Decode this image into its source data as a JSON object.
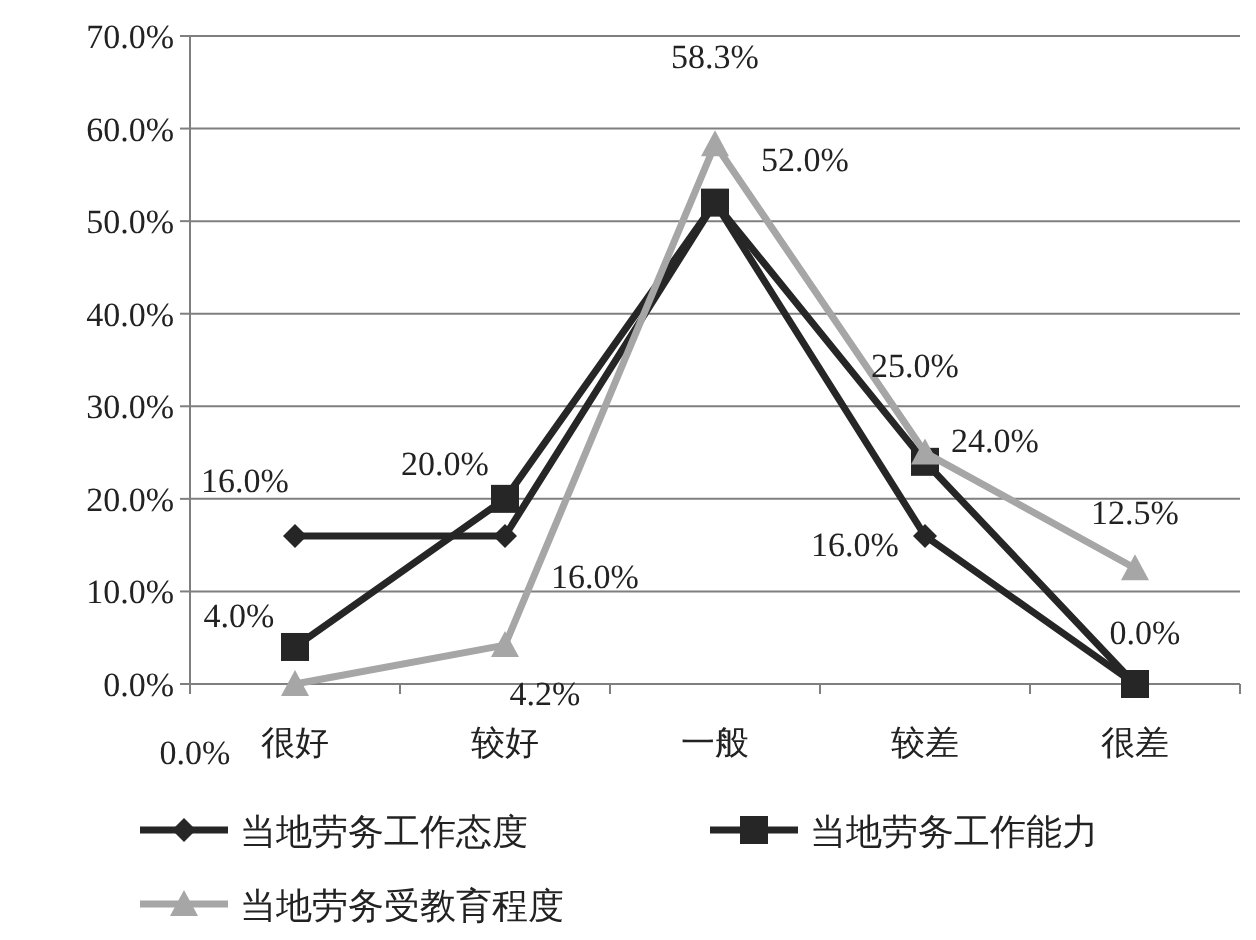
{
  "chart_data": {
    "type": "line",
    "categories": [
      "很好",
      "较好",
      "一般",
      "较差",
      "很差"
    ],
    "series": [
      {
        "name": "当地劳务工作态度",
        "color": "#262626",
        "marker": "diamond",
        "values": [
          16,
          16,
          52,
          16,
          0
        ],
        "value_labels": [
          "16.0%",
          "16.0%",
          null,
          "16.0%",
          null
        ]
      },
      {
        "name": "当地劳务工作能力",
        "color": "#262626",
        "marker": "square",
        "values": [
          4,
          20,
          52,
          24,
          0
        ],
        "value_labels": [
          "4.0%",
          "20.0%",
          "52.0%",
          "24.0%",
          "0.0%"
        ]
      },
      {
        "name": "当地劳务受教育程度",
        "color": "#a6a6a6",
        "marker": "triangle",
        "values": [
          0,
          4.2,
          58.3,
          25,
          12.5
        ],
        "value_labels": [
          "0.0%",
          "4.2%",
          "58.3%",
          "25.0%",
          "12.5%"
        ]
      }
    ],
    "ylim": [
      0,
      70
    ],
    "yticks": [
      {
        "value": 0,
        "label": "0.0%"
      },
      {
        "value": 10,
        "label": "10.0%"
      },
      {
        "value": 20,
        "label": "20.0%"
      },
      {
        "value": 30,
        "label": "30.0%"
      },
      {
        "value": 40,
        "label": "40.0%"
      },
      {
        "value": 50,
        "label": "50.0%"
      },
      {
        "value": 60,
        "label": "60.0%"
      },
      {
        "value": 70,
        "label": "70.0%"
      }
    ],
    "grid": "y",
    "legend": "bottom"
  }
}
